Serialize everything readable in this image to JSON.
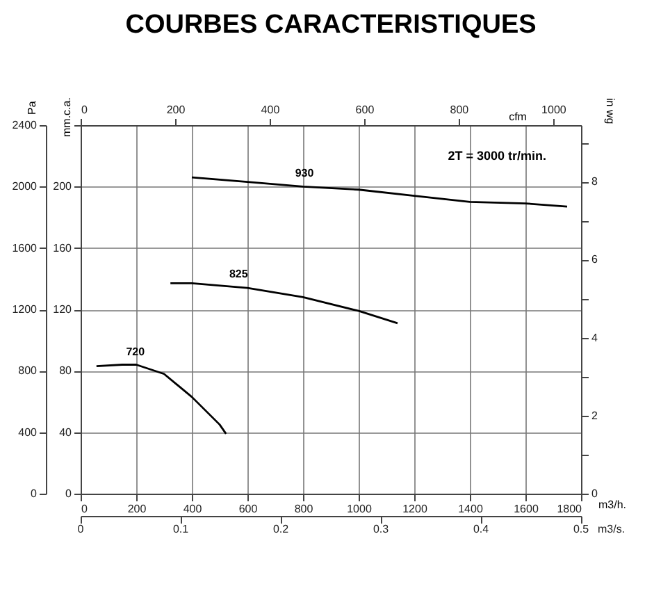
{
  "chart_data": {
    "type": "line",
    "title": "COURBES CARACTERISTIQUES",
    "xlabel": "m3/h.",
    "ylabel": "mm.c.a.",
    "y2label": "in wg",
    "y3label": "Pa",
    "x2label": "cfm",
    "xlim": [
      0,
      1800
    ],
    "xticks": [
      0,
      200,
      400,
      600,
      800,
      1000,
      1200,
      1400,
      1600,
      1800
    ],
    "ylim": [
      0,
      240
    ],
    "yticks": [
      0,
      40,
      80,
      120,
      160,
      200,
      {
        "value": 240,
        "label": null
      }
    ],
    "y2lim": [
      0,
      9.45
    ],
    "y2ticks": [
      0,
      {
        "value": 1,
        "label": null
      },
      2,
      {
        "value": 3,
        "label": null
      },
      4,
      {
        "value": 5,
        "label": null
      },
      6,
      {
        "value": 7,
        "label": null
      },
      8,
      {
        "value": 9,
        "label": null
      }
    ],
    "y3lim": [
      0,
      2400
    ],
    "y3ticks": [
      0,
      400,
      800,
      1200,
      1600,
      2000,
      2400
    ],
    "x2lim": [
      0,
      1059
    ],
    "x2ticks": [
      0,
      200,
      400,
      600,
      800,
      1000
    ],
    "grid": true,
    "legend": false,
    "marker": "none",
    "line_style": "solid",
    "annotations": [
      "2T = 3000 tr/min.",
      "m3/s.",
      "0",
      "0.1",
      "0.2",
      "0.3",
      "0.4",
      "0.5"
    ],
    "series": [
      {
        "name": "930",
        "color": "#000000",
        "x": [
          400,
          600,
          800,
          1000,
          1200,
          1400,
          1600,
          1750
        ],
        "values": [
          206,
          203,
          200,
          198,
          194,
          190,
          189,
          187
        ]
      },
      {
        "name": "825",
        "color": "#000000",
        "x": [
          323,
          400,
          600,
          800,
          1000,
          1140
        ],
        "values": [
          137,
          137,
          134,
          128,
          119,
          111
        ]
      },
      {
        "name": "720",
        "color": "#000000",
        "x": [
          57,
          150,
          200,
          300,
          400,
          500,
          523
        ],
        "values": [
          83,
          84,
          84,
          78,
          63,
          45,
          39
        ]
      }
    ]
  }
}
